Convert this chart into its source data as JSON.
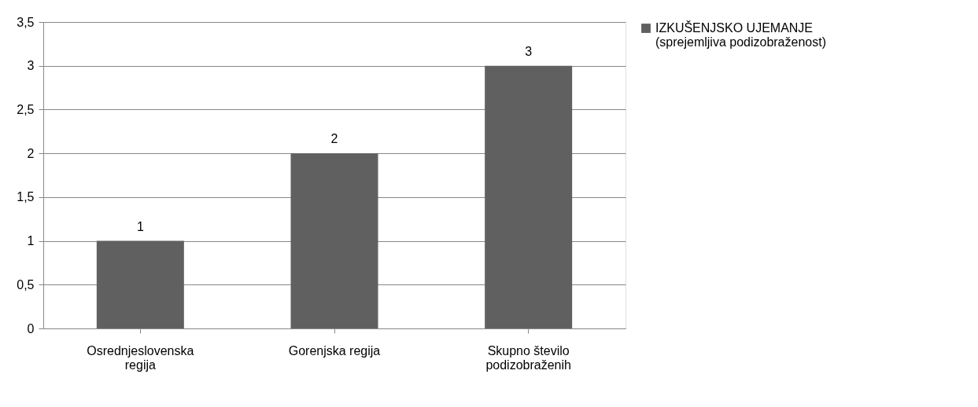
{
  "chart_data": {
    "type": "bar",
    "categories": [
      "Osrednjeslovenska regija",
      "Gorenjska regija",
      "Skupno število podizobraženih"
    ],
    "series": [
      {
        "name": "IZKUŠENJSKO UJEMANJE (sprejemljiva podizobraženost)",
        "color": "#606060",
        "values": [
          1,
          2,
          3
        ]
      }
    ],
    "ylim": [
      0,
      3.5
    ],
    "yticks": [
      0,
      {
        "value": 0.5,
        "label": "0,5"
      },
      1,
      {
        "value": 1.5,
        "label": "1,5"
      },
      2,
      {
        "value": 2.5,
        "label": "2,5"
      },
      3,
      {
        "value": 3.5,
        "label": "3,5"
      }
    ],
    "grid": "y",
    "legend": "right",
    "data_labels": true
  }
}
